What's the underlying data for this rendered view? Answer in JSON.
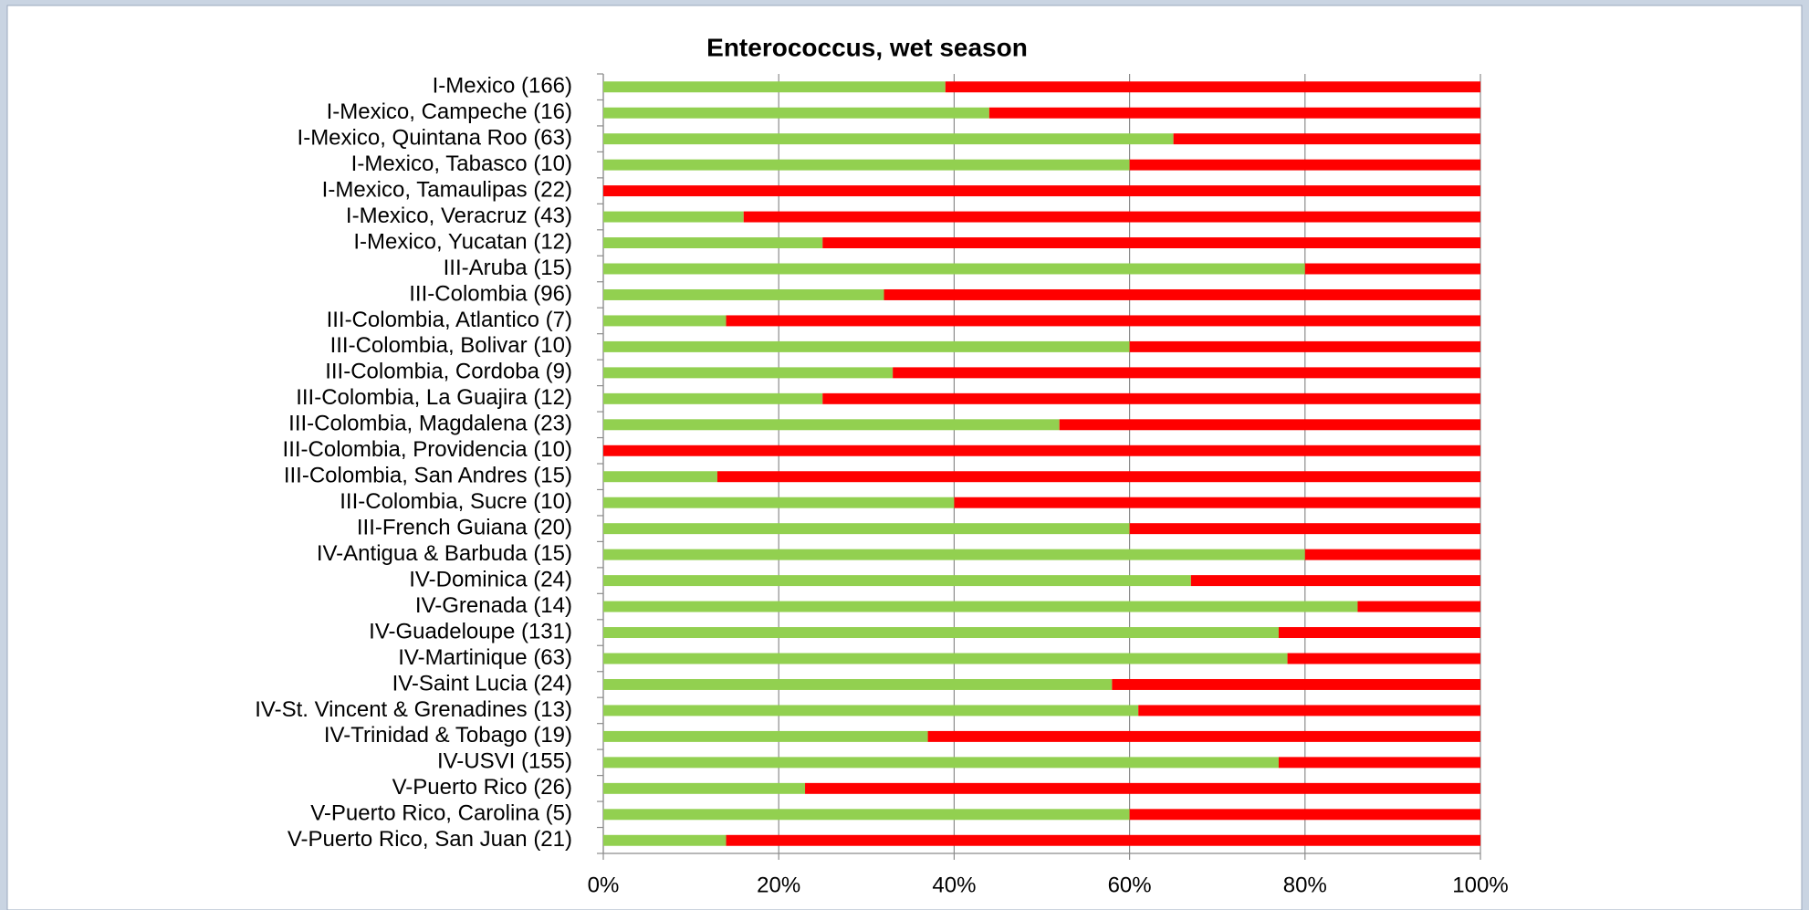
{
  "chart_data": {
    "type": "stacked_bar_horizontal",
    "title": "Enterococcus, wet season",
    "categories": [
      "I-Mexico (166)",
      "I-Mexico, Campeche (16)",
      "I-Mexico, Quintana Roo (63)",
      "I-Mexico, Tabasco (10)",
      "I-Mexico, Tamaulipas (22)",
      "I-Mexico, Veracruz (43)",
      "I-Mexico, Yucatan (12)",
      "III-Aruba (15)",
      "III-Colombia (96)",
      "III-Colombia, Atlantico (7)",
      "III-Colombia, Bolivar (10)",
      "III-Colombia, Cordoba (9)",
      "III-Colombia, La Guajira (12)",
      "III-Colombia, Magdalena (23)",
      "III-Colombia, Providencia (10)",
      "III-Colombia, San Andres (15)",
      "III-Colombia, Sucre (10)",
      "III-French Guiana (20)",
      "IV-Antigua & Barbuda (15)",
      "IV-Dominica (24)",
      "IV-Grenada (14)",
      "IV-Guadeloupe (131)",
      "IV-Martinique (63)",
      "IV-Saint Lucia (24)",
      "IV-St. Vincent & Grenadines (13)",
      "IV-Trinidad & Tobago (19)",
      "IV-USVI (155)",
      "V-Puerto Rico (26)",
      "V-Puerto Rico, Carolina (5)",
      "V-Puerto Rico, San Juan (21)"
    ],
    "series": [
      {
        "color": "#92d050",
        "values": [
          39,
          44,
          65,
          60,
          0,
          16,
          25,
          80,
          32,
          14,
          60,
          33,
          25,
          52,
          0,
          13,
          40,
          60,
          80,
          67,
          86,
          77,
          78,
          58,
          61,
          37,
          77,
          23,
          60,
          14
        ]
      },
      {
        "color": "#ff0000",
        "values": [
          61,
          56,
          35,
          40,
          100,
          84,
          75,
          20,
          68,
          86,
          40,
          67,
          75,
          48,
          100,
          87,
          60,
          40,
          20,
          33,
          14,
          23,
          22,
          42,
          39,
          63,
          23,
          77,
          40,
          86
        ]
      }
    ],
    "xlim": [
      0,
      100
    ],
    "xticks": [
      {
        "value": 0,
        "label": "0%"
      },
      {
        "value": 20,
        "label": "20%"
      },
      {
        "value": 40,
        "label": "40%"
      },
      {
        "value": 60,
        "label": "60%"
      },
      {
        "value": 80,
        "label": "80%"
      },
      {
        "value": 100,
        "label": "100%"
      }
    ],
    "grid": true
  }
}
